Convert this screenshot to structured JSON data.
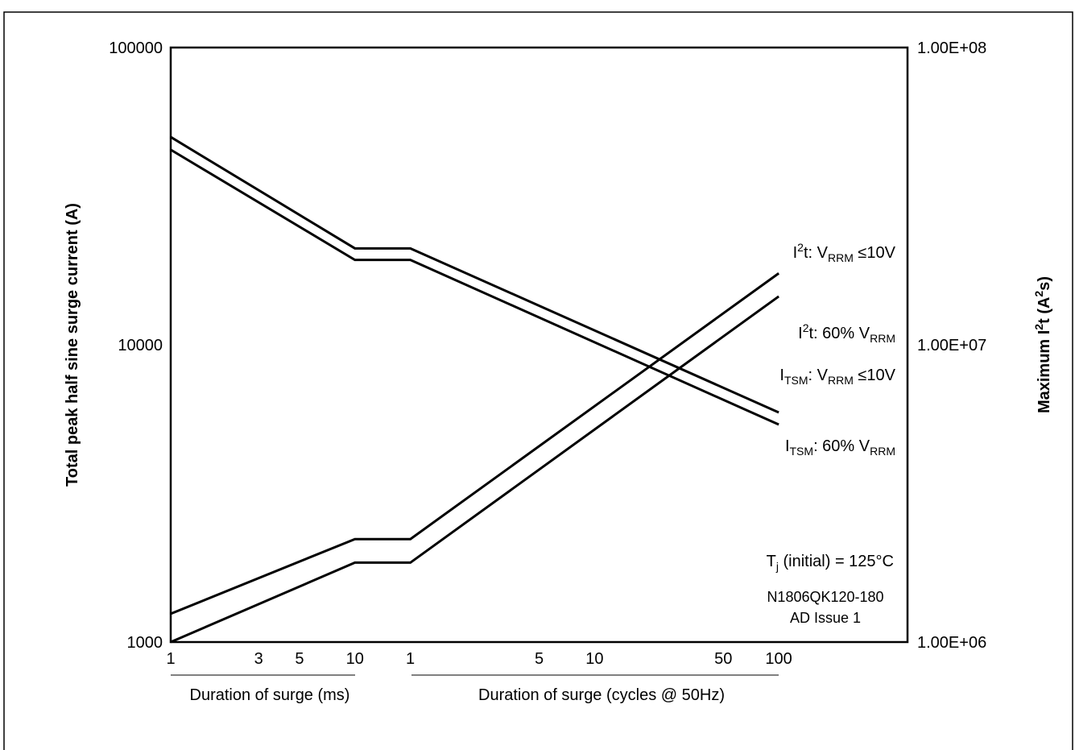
{
  "chart_data": {
    "type": "line",
    "y_label": "Total peak half sine surge current (A)",
    "y2_label": [
      "Maximum I",
      "2",
      "t (A",
      "2",
      "s)"
    ],
    "x_label_ms": "Duration of surge (ms)",
    "x_label_cycles": "Duration of surge (cycles @ 50Hz)",
    "x": [
      1,
      10,
      20,
      2000
    ],
    "xlim": [
      1,
      10000
    ],
    "xscale": "log",
    "xticks": [
      1,
      3,
      5,
      10
    ],
    "x2lim": [
      0.05,
      500
    ],
    "x2ticks": [
      1,
      5,
      10,
      50,
      100
    ],
    "xgrid_major": [
      10,
      100,
      1000
    ],
    "ylim": [
      1000,
      100000
    ],
    "yscale": "log",
    "yticks": [
      1000,
      10000,
      100000
    ],
    "y2lim": [
      1000000,
      100000000
    ],
    "y2ticks": [
      {
        "value": 1000000,
        "label": "1.00E+06"
      },
      {
        "value": 10000000,
        "label": "1.00E+07"
      },
      {
        "value": 100000000,
        "label": "1.00E+08"
      }
    ],
    "grid": true,
    "grid_color": "#8080ff",
    "series": [
      {
        "name": [
          "I",
          "TSM",
          ": V",
          "RRM",
          " ≤10V"
        ],
        "color": "#000000",
        "values": [
          50000,
          21100,
          21100,
          5920
        ]
      },
      {
        "name": [
          "I",
          "TSM",
          ": 60% V",
          "RRM"
        ],
        "color": "#000000",
        "values": [
          45300,
          19300,
          19300,
          5390
        ]
      },
      {
        "name": [
          "I",
          "2",
          "t: V",
          "RRM",
          " ≤10V"
        ],
        "color": "#000000",
        "axis": "y2",
        "values": [
          1245000,
          2220000,
          2220000,
          17400000
        ]
      },
      {
        "name": [
          "I",
          "2",
          "t: 60% V",
          "RRM"
        ],
        "color": "#000000",
        "axis": "y2",
        "values": [
          1000000,
          1850000,
          1850000,
          14550000
        ]
      }
    ],
    "annotations": [
      [
        "T",
        "j",
        " (initial) = 125°C"
      ],
      "N1806QK120-180",
      "AD Issue 1"
    ]
  }
}
